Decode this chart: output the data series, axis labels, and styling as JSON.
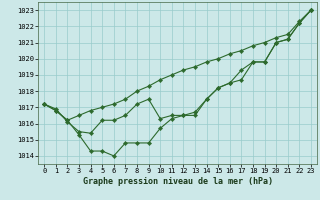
{
  "hours": [
    0,
    1,
    2,
    3,
    4,
    5,
    6,
    7,
    8,
    9,
    10,
    11,
    12,
    13,
    14,
    15,
    16,
    17,
    18,
    19,
    20,
    21,
    22,
    23
  ],
  "line1": [
    1017.2,
    1016.8,
    1016.2,
    1015.3,
    1014.3,
    1014.3,
    1014.0,
    1014.8,
    1014.8,
    1014.8,
    1015.7,
    1016.3,
    1016.5,
    1016.5,
    1017.5,
    1018.2,
    1018.5,
    1019.3,
    1019.8,
    1019.8,
    1021.0,
    1021.2,
    1022.2,
    1023.0
  ],
  "line2": [
    1017.2,
    1016.8,
    1016.2,
    1016.5,
    1016.8,
    1017.0,
    1017.2,
    1017.5,
    1018.0,
    1018.3,
    1018.7,
    1019.0,
    1019.3,
    1019.5,
    1019.8,
    1020.0,
    1020.3,
    1020.5,
    1020.8,
    1021.0,
    1021.3,
    1021.5,
    1022.3,
    1023.0
  ],
  "line3": [
    1017.2,
    1016.9,
    1016.1,
    1015.5,
    1015.4,
    1016.2,
    1016.2,
    1016.5,
    1017.2,
    1017.5,
    1016.3,
    1016.5,
    1016.5,
    1016.7,
    1017.5,
    1018.2,
    1018.5,
    1018.7,
    1019.8,
    1019.8,
    1021.0,
    1021.2,
    1022.2,
    1023.0
  ],
  "bg_color": "#cce8e8",
  "line_color": "#2d6a2d",
  "grid_color": "#99cccc",
  "xlabel": "Graphe pression niveau de la mer (hPa)",
  "ylim_min": 1013.5,
  "ylim_max": 1023.5,
  "yticks": [
    1014,
    1015,
    1016,
    1017,
    1018,
    1019,
    1020,
    1021,
    1022,
    1023
  ],
  "xticks": [
    0,
    1,
    2,
    3,
    4,
    5,
    6,
    7,
    8,
    9,
    10,
    11,
    12,
    13,
    14,
    15,
    16,
    17,
    18,
    19,
    20,
    21,
    22,
    23
  ],
  "marker_size": 2.2,
  "line_width": 0.8,
  "xlabel_fontsize": 6.0,
  "tick_fontsize": 5.0
}
